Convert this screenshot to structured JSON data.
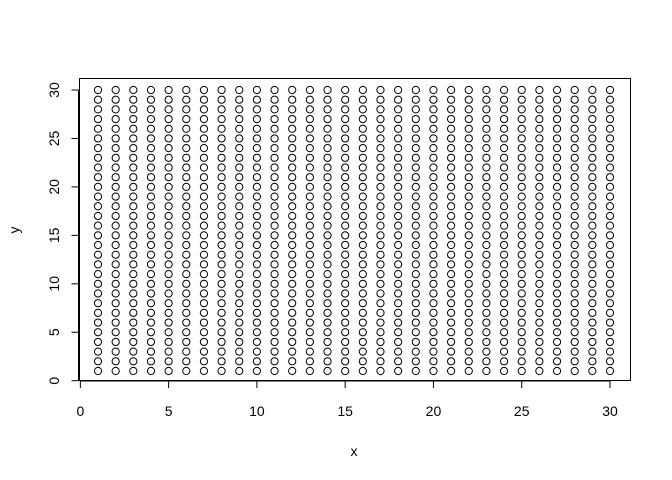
{
  "chart_data": {
    "type": "scatter",
    "title": "",
    "xlabel": "x",
    "ylabel": "y",
    "x_range": [
      1,
      30
    ],
    "y_range": [
      1,
      30
    ],
    "x_step": 1,
    "y_step": 1,
    "xlim": [
      0,
      31
    ],
    "ylim": [
      0,
      31
    ],
    "x_ticks": [
      0,
      5,
      10,
      15,
      20,
      25,
      30
    ],
    "y_ticks": [
      0,
      5,
      10,
      15,
      20,
      25,
      30
    ],
    "marker": "open-circle",
    "point_color": "#000000",
    "grid": false,
    "legend": "none"
  }
}
